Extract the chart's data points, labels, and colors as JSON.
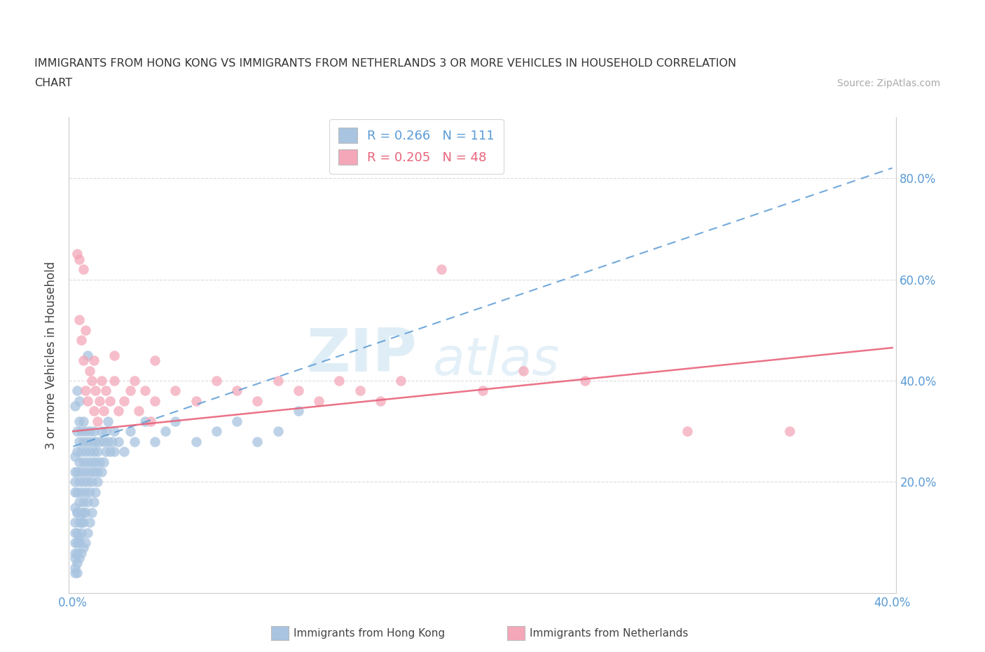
{
  "title_line1": "IMMIGRANTS FROM HONG KONG VS IMMIGRANTS FROM NETHERLANDS 3 OR MORE VEHICLES IN HOUSEHOLD CORRELATION",
  "title_line2": "CHART",
  "source": "Source: ZipAtlas.com",
  "ylabel": "3 or more Vehicles in Household",
  "xlim": [
    -0.002,
    0.402
  ],
  "ylim": [
    -0.02,
    0.92
  ],
  "xticks": [
    0.0,
    0.05,
    0.1,
    0.15,
    0.2,
    0.25,
    0.3,
    0.35,
    0.4
  ],
  "xticklabels": [
    "0.0%",
    "",
    "",
    "",
    "",
    "",
    "",
    "",
    "40.0%"
  ],
  "yticks": [
    0.2,
    0.4,
    0.6,
    0.8
  ],
  "yticklabels": [
    "20.0%",
    "40.0%",
    "60.0%",
    "80.0%"
  ],
  "hk_color": "#a8c4e0",
  "nl_color": "#f4a7b9",
  "hk_R": 0.266,
  "hk_N": 111,
  "nl_R": 0.205,
  "nl_N": 48,
  "hk_trend_color": "#5b9bd5",
  "nl_trend_color": "#e8637a",
  "watermark_big": "ZIP",
  "watermark_small": "atlas",
  "background_color": "#ffffff",
  "hk_trend_x": [
    0.0,
    0.4
  ],
  "hk_trend_y": [
    0.27,
    0.82
  ],
  "nl_trend_x": [
    0.0,
    0.4
  ],
  "nl_trend_y": [
    0.3,
    0.465
  ],
  "hk_scatter": [
    [
      0.001,
      0.05
    ],
    [
      0.001,
      0.08
    ],
    [
      0.001,
      0.1
    ],
    [
      0.001,
      0.12
    ],
    [
      0.001,
      0.15
    ],
    [
      0.001,
      0.18
    ],
    [
      0.001,
      0.2
    ],
    [
      0.001,
      0.22
    ],
    [
      0.001,
      0.25
    ],
    [
      0.002,
      0.06
    ],
    [
      0.002,
      0.1
    ],
    [
      0.002,
      0.14
    ],
    [
      0.002,
      0.18
    ],
    [
      0.002,
      0.22
    ],
    [
      0.002,
      0.26
    ],
    [
      0.002,
      0.3
    ],
    [
      0.002,
      0.14
    ],
    [
      0.003,
      0.08
    ],
    [
      0.003,
      0.12
    ],
    [
      0.003,
      0.16
    ],
    [
      0.003,
      0.2
    ],
    [
      0.003,
      0.24
    ],
    [
      0.003,
      0.28
    ],
    [
      0.003,
      0.32
    ],
    [
      0.004,
      0.1
    ],
    [
      0.004,
      0.14
    ],
    [
      0.004,
      0.18
    ],
    [
      0.004,
      0.22
    ],
    [
      0.004,
      0.26
    ],
    [
      0.004,
      0.3
    ],
    [
      0.005,
      0.12
    ],
    [
      0.005,
      0.16
    ],
    [
      0.005,
      0.2
    ],
    [
      0.005,
      0.24
    ],
    [
      0.005,
      0.28
    ],
    [
      0.005,
      0.32
    ],
    [
      0.006,
      0.14
    ],
    [
      0.006,
      0.18
    ],
    [
      0.006,
      0.22
    ],
    [
      0.006,
      0.26
    ],
    [
      0.006,
      0.3
    ],
    [
      0.007,
      0.16
    ],
    [
      0.007,
      0.2
    ],
    [
      0.007,
      0.24
    ],
    [
      0.007,
      0.28
    ],
    [
      0.007,
      0.45
    ],
    [
      0.008,
      0.18
    ],
    [
      0.008,
      0.22
    ],
    [
      0.008,
      0.26
    ],
    [
      0.008,
      0.3
    ],
    [
      0.009,
      0.2
    ],
    [
      0.009,
      0.24
    ],
    [
      0.009,
      0.28
    ],
    [
      0.01,
      0.22
    ],
    [
      0.01,
      0.26
    ],
    [
      0.01,
      0.3
    ],
    [
      0.011,
      0.24
    ],
    [
      0.011,
      0.28
    ],
    [
      0.012,
      0.22
    ],
    [
      0.012,
      0.26
    ],
    [
      0.013,
      0.24
    ],
    [
      0.013,
      0.28
    ],
    [
      0.014,
      0.22
    ],
    [
      0.014,
      0.3
    ],
    [
      0.015,
      0.24
    ],
    [
      0.015,
      0.28
    ],
    [
      0.016,
      0.26
    ],
    [
      0.016,
      0.3
    ],
    [
      0.017,
      0.28
    ],
    [
      0.017,
      0.32
    ],
    [
      0.018,
      0.26
    ],
    [
      0.019,
      0.28
    ],
    [
      0.02,
      0.26
    ],
    [
      0.02,
      0.3
    ],
    [
      0.022,
      0.28
    ],
    [
      0.025,
      0.26
    ],
    [
      0.028,
      0.3
    ],
    [
      0.03,
      0.28
    ],
    [
      0.035,
      0.32
    ],
    [
      0.04,
      0.28
    ],
    [
      0.045,
      0.3
    ],
    [
      0.05,
      0.32
    ],
    [
      0.06,
      0.28
    ],
    [
      0.07,
      0.3
    ],
    [
      0.08,
      0.32
    ],
    [
      0.09,
      0.28
    ],
    [
      0.1,
      0.3
    ],
    [
      0.11,
      0.34
    ],
    [
      0.001,
      0.03
    ],
    [
      0.001,
      0.06
    ],
    [
      0.002,
      0.04
    ],
    [
      0.002,
      0.08
    ],
    [
      0.003,
      0.05
    ],
    [
      0.003,
      0.09
    ],
    [
      0.004,
      0.06
    ],
    [
      0.004,
      0.12
    ],
    [
      0.005,
      0.07
    ],
    [
      0.005,
      0.14
    ],
    [
      0.006,
      0.08
    ],
    [
      0.007,
      0.1
    ],
    [
      0.008,
      0.12
    ],
    [
      0.009,
      0.14
    ],
    [
      0.01,
      0.16
    ],
    [
      0.011,
      0.18
    ],
    [
      0.012,
      0.2
    ],
    [
      0.001,
      0.35
    ],
    [
      0.002,
      0.38
    ],
    [
      0.003,
      0.36
    ],
    [
      0.001,
      0.02
    ],
    [
      0.002,
      0.02
    ]
  ],
  "nl_scatter": [
    [
      0.002,
      0.65
    ],
    [
      0.003,
      0.52
    ],
    [
      0.004,
      0.48
    ],
    [
      0.005,
      0.44
    ],
    [
      0.006,
      0.38
    ],
    [
      0.007,
      0.36
    ],
    [
      0.008,
      0.42
    ],
    [
      0.009,
      0.4
    ],
    [
      0.01,
      0.34
    ],
    [
      0.011,
      0.38
    ],
    [
      0.012,
      0.32
    ],
    [
      0.013,
      0.36
    ],
    [
      0.014,
      0.4
    ],
    [
      0.015,
      0.34
    ],
    [
      0.016,
      0.38
    ],
    [
      0.018,
      0.36
    ],
    [
      0.02,
      0.4
    ],
    [
      0.022,
      0.34
    ],
    [
      0.025,
      0.36
    ],
    [
      0.028,
      0.38
    ],
    [
      0.03,
      0.4
    ],
    [
      0.032,
      0.34
    ],
    [
      0.035,
      0.38
    ],
    [
      0.038,
      0.32
    ],
    [
      0.04,
      0.36
    ],
    [
      0.05,
      0.38
    ],
    [
      0.06,
      0.36
    ],
    [
      0.07,
      0.4
    ],
    [
      0.08,
      0.38
    ],
    [
      0.09,
      0.36
    ],
    [
      0.1,
      0.4
    ],
    [
      0.11,
      0.38
    ],
    [
      0.12,
      0.36
    ],
    [
      0.13,
      0.4
    ],
    [
      0.14,
      0.38
    ],
    [
      0.15,
      0.36
    ],
    [
      0.16,
      0.4
    ],
    [
      0.18,
      0.62
    ],
    [
      0.2,
      0.38
    ],
    [
      0.22,
      0.42
    ],
    [
      0.25,
      0.4
    ],
    [
      0.3,
      0.3
    ],
    [
      0.003,
      0.64
    ],
    [
      0.005,
      0.62
    ],
    [
      0.01,
      0.44
    ],
    [
      0.02,
      0.45
    ],
    [
      0.04,
      0.44
    ],
    [
      0.006,
      0.5
    ],
    [
      0.35,
      0.3
    ]
  ],
  "grid_color": "#d8d8d8",
  "tick_color": "#5b9bd5",
  "spine_color": "#cccccc"
}
